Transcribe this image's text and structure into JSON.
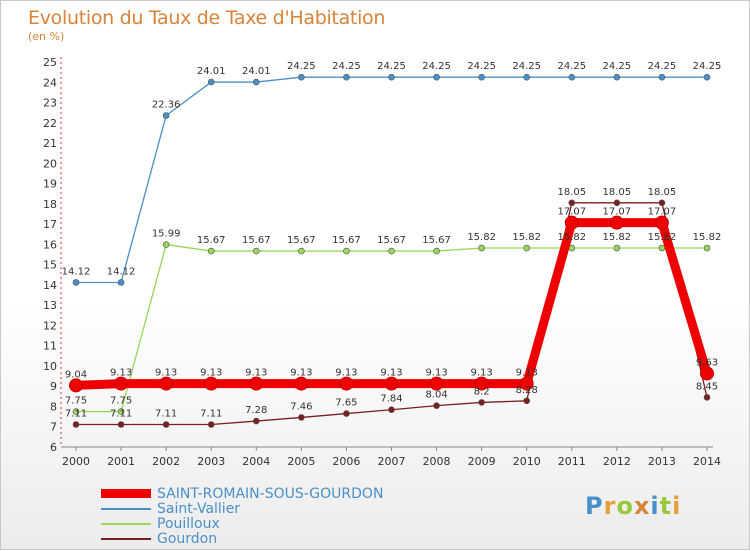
{
  "header": {
    "title": "Evolution du Taux de Taxe d'Habitation",
    "unit": "(en %)"
  },
  "chart_data": {
    "type": "line",
    "title": "Evolution du Taux de Taxe d'Habitation",
    "ylabel": "(en %)",
    "xlabel": "",
    "x": [
      "2000",
      "2001",
      "2002",
      "2003",
      "2004",
      "2005",
      "2006",
      "2007",
      "2008",
      "2009",
      "2010",
      "2011",
      "2012",
      "2013",
      "2014"
    ],
    "ylim": [
      6,
      25
    ],
    "yticks": [
      6,
      7,
      8,
      9,
      10,
      11,
      12,
      13,
      14,
      15,
      16,
      17,
      18,
      19,
      20,
      21,
      22,
      23,
      24,
      25
    ],
    "grid": false,
    "legend": "bottom-left",
    "series": [
      {
        "name": "Saint-Vallier",
        "color": "#4a90c8",
        "values": [
          14.12,
          14.12,
          22.36,
          24.01,
          24.01,
          24.25,
          24.25,
          24.25,
          24.25,
          24.25,
          24.25,
          24.25,
          24.25,
          24.25,
          24.25
        ],
        "labels": [
          "14.12",
          "14.12",
          "22.36",
          "24.01",
          "24.01",
          "24.25",
          "24.25",
          "24.25",
          "24.25",
          "24.25",
          "24.25",
          "24.25",
          "24.25",
          "24.25",
          "24.25"
        ]
      },
      {
        "name": "Pouilloux",
        "color": "#99d65a",
        "values": [
          7.75,
          7.75,
          15.99,
          15.67,
          15.67,
          15.67,
          15.67,
          15.67,
          15.67,
          15.82,
          15.82,
          15.82,
          15.82,
          15.82,
          15.82
        ],
        "labels": [
          "7.75",
          "7.75",
          "15.99",
          "15.67",
          "15.67",
          "15.67",
          "15.67",
          "15.67",
          "15.67",
          "15.82",
          "15.82",
          "15.82",
          "15.82",
          "15.82",
          "15.82"
        ]
      },
      {
        "name": "Gourdon",
        "color": "#7a1f1f",
        "values": [
          7.11,
          7.11,
          7.11,
          7.11,
          7.28,
          7.46,
          7.65,
          7.84,
          8.04,
          8.2,
          8.28,
          18.05,
          18.05,
          18.05,
          8.45
        ],
        "labels": [
          "7.11",
          "7.11",
          "7.11",
          "7.11",
          "7.28",
          "7.46",
          "7.65",
          "7.84",
          "8.04",
          "8.2",
          "8.28",
          "18.05",
          "18.05",
          "18.05",
          "8.45"
        ]
      },
      {
        "name": "SAINT-ROMAIN-SOUS-GOURDON",
        "color": "#ee0000",
        "values": [
          9.04,
          9.13,
          9.13,
          9.13,
          9.13,
          9.13,
          9.13,
          9.13,
          9.13,
          9.13,
          9.13,
          17.07,
          17.07,
          17.07,
          9.63
        ],
        "labels": [
          "9.04",
          "9.13",
          "9.13",
          "9.13",
          "9.13",
          "9.13",
          "9.13",
          "9.13",
          "9.13",
          "9.13",
          "9.13",
          "17.07",
          "17.07",
          "17.07",
          "9.63"
        ]
      }
    ]
  },
  "legend": {
    "items": [
      {
        "name": "SAINT-ROMAIN-SOUS-GOURDON",
        "color": "#ee0000"
      },
      {
        "name": "Saint-Vallier",
        "color": "#4a90c8"
      },
      {
        "name": "Pouilloux",
        "color": "#99d65a"
      },
      {
        "name": "Gourdon",
        "color": "#7a1f1f"
      }
    ]
  },
  "logo": {
    "letters": [
      "P",
      "r",
      "o",
      "x",
      "i",
      "t",
      "i"
    ],
    "colors": [
      "#4a90c8",
      "#e8a13a",
      "#99c93a",
      "#d9833a",
      "#4a90c8",
      "#99c93a",
      "#e8a13a"
    ]
  }
}
